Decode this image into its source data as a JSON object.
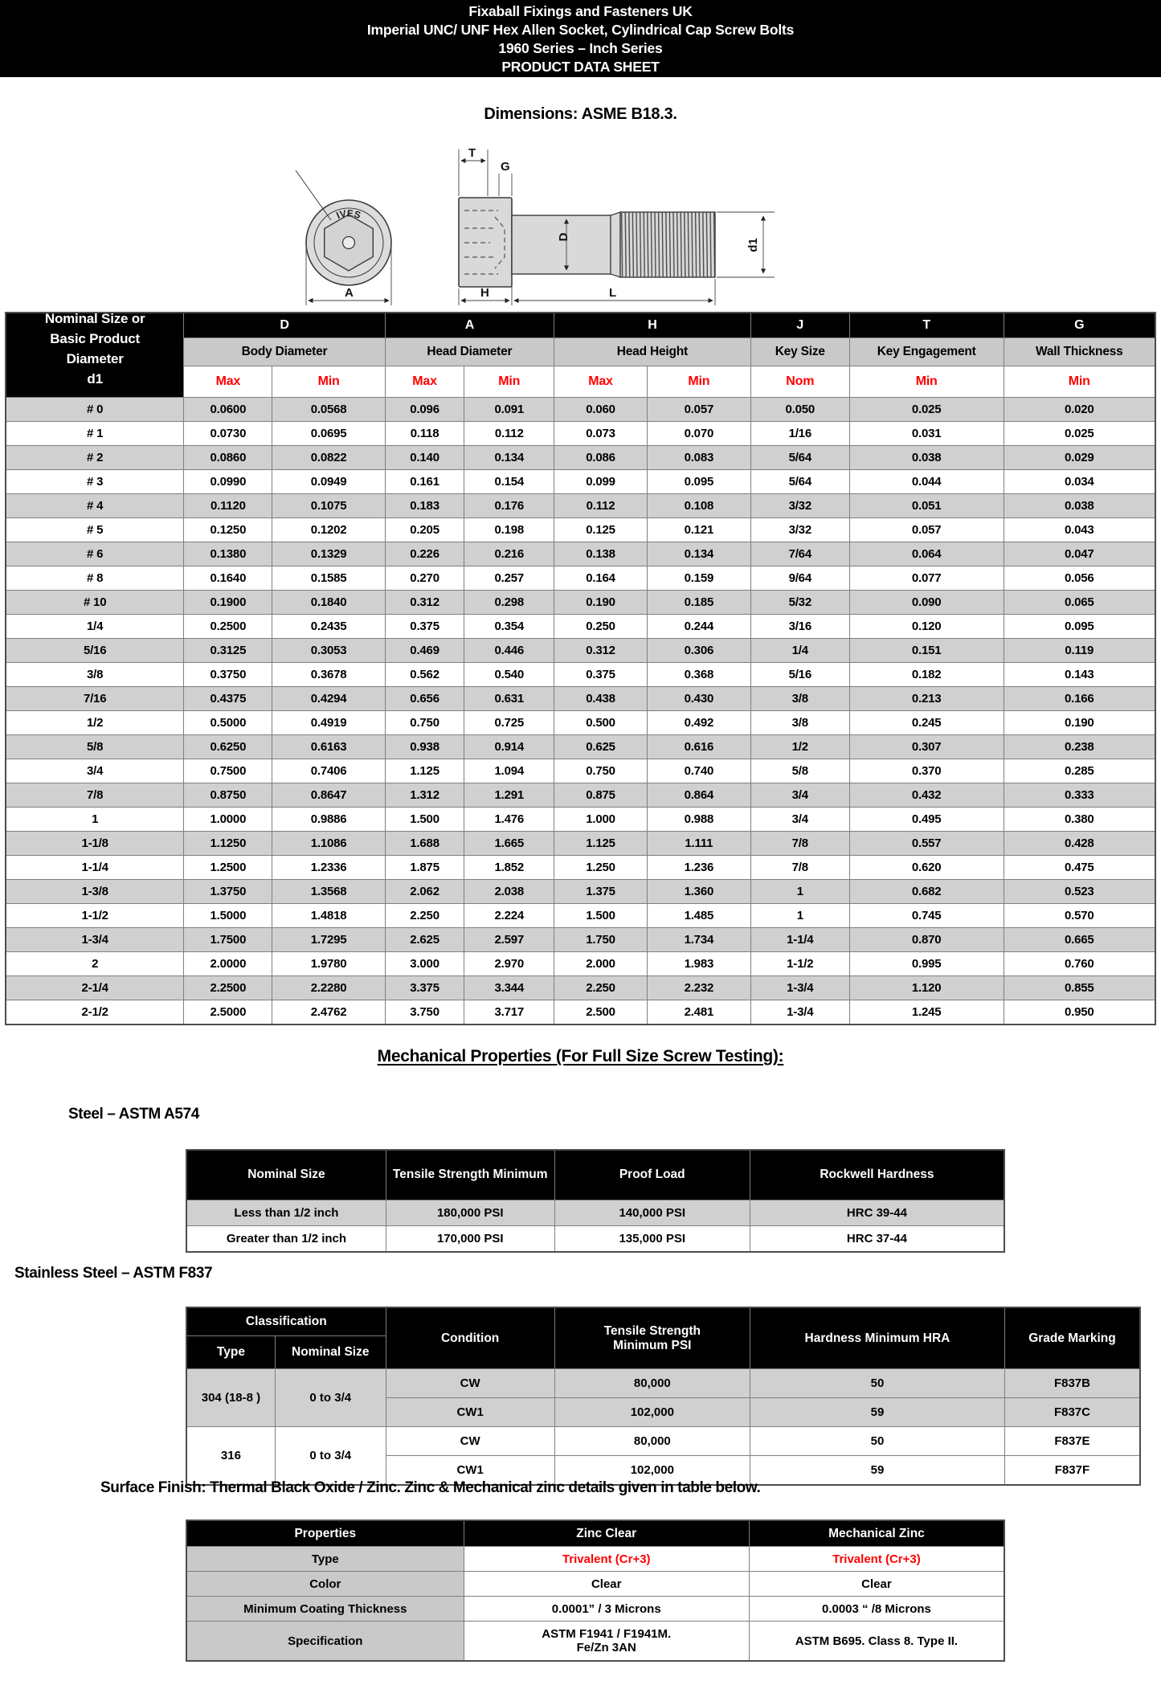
{
  "header": {
    "line1": "Fixaball Fixings and Fasteners UK",
    "line2": "Imperial UNC/ UNF Hex Allen Socket, Cylindrical Cap Screw Bolts",
    "line3": "1960 Series – Inch Series",
    "line4": "PRODUCT DATA SHEET"
  },
  "dimensions_note": "Dimensions: ASME B18.3.",
  "drawing": {
    "head_marking": "IVES",
    "labels": {
      "key_engagement": "T",
      "wall": "G",
      "body": "D",
      "thread": "d1",
      "head_dia": "A",
      "head_height": "H",
      "length": "L"
    }
  },
  "main_table": {
    "corner_header_lines": [
      "Nominal Size or",
      "Basic Product",
      "Diameter",
      "d1"
    ],
    "groups": [
      {
        "letter": "D",
        "name": "Body Diameter",
        "cols": [
          "Max",
          "Min"
        ]
      },
      {
        "letter": "A",
        "name": "Head Diameter",
        "cols": [
          "Max",
          "Min"
        ]
      },
      {
        "letter": "H",
        "name": "Head Height",
        "cols": [
          "Max",
          "Min"
        ]
      },
      {
        "letter": "J",
        "name": "Key Size",
        "cols": [
          "Nom"
        ]
      },
      {
        "letter": "T",
        "name": "Key Engagement",
        "cols": [
          "Min"
        ]
      },
      {
        "letter": "G",
        "name": "Wall Thickness",
        "cols": [
          "Min"
        ]
      }
    ],
    "rows": [
      [
        "# 0",
        "0.0600",
        "0.0568",
        "0.096",
        "0.091",
        "0.060",
        "0.057",
        "0.050",
        "0.025",
        "0.020"
      ],
      [
        "# 1",
        "0.0730",
        "0.0695",
        "0.118",
        "0.112",
        "0.073",
        "0.070",
        "1/16",
        "0.031",
        "0.025"
      ],
      [
        "# 2",
        "0.0860",
        "0.0822",
        "0.140",
        "0.134",
        "0.086",
        "0.083",
        "5/64",
        "0.038",
        "0.029"
      ],
      [
        "# 3",
        "0.0990",
        "0.0949",
        "0.161",
        "0.154",
        "0.099",
        "0.095",
        "5/64",
        "0.044",
        "0.034"
      ],
      [
        "# 4",
        "0.1120",
        "0.1075",
        "0.183",
        "0.176",
        "0.112",
        "0.108",
        "3/32",
        "0.051",
        "0.038"
      ],
      [
        "# 5",
        "0.1250",
        "0.1202",
        "0.205",
        "0.198",
        "0.125",
        "0.121",
        "3/32",
        "0.057",
        "0.043"
      ],
      [
        "# 6",
        "0.1380",
        "0.1329",
        "0.226",
        "0.216",
        "0.138",
        "0.134",
        "7/64",
        "0.064",
        "0.047"
      ],
      [
        "# 8",
        "0.1640",
        "0.1585",
        "0.270",
        "0.257",
        "0.164",
        "0.159",
        "9/64",
        "0.077",
        "0.056"
      ],
      [
        "# 10",
        "0.1900",
        "0.1840",
        "0.312",
        "0.298",
        "0.190",
        "0.185",
        "5/32",
        "0.090",
        "0.065"
      ],
      [
        "1/4",
        "0.2500",
        "0.2435",
        "0.375",
        "0.354",
        "0.250",
        "0.244",
        "3/16",
        "0.120",
        "0.095"
      ],
      [
        "5/16",
        "0.3125",
        "0.3053",
        "0.469",
        "0.446",
        "0.312",
        "0.306",
        "1/4",
        "0.151",
        "0.119"
      ],
      [
        "3/8",
        "0.3750",
        "0.3678",
        "0.562",
        "0.540",
        "0.375",
        "0.368",
        "5/16",
        "0.182",
        "0.143"
      ],
      [
        "7/16",
        "0.4375",
        "0.4294",
        "0.656",
        "0.631",
        "0.438",
        "0.430",
        "3/8",
        "0.213",
        "0.166"
      ],
      [
        "1/2",
        "0.5000",
        "0.4919",
        "0.750",
        "0.725",
        "0.500",
        "0.492",
        "3/8",
        "0.245",
        "0.190"
      ],
      [
        "5/8",
        "0.6250",
        "0.6163",
        "0.938",
        "0.914",
        "0.625",
        "0.616",
        "1/2",
        "0.307",
        "0.238"
      ],
      [
        "3/4",
        "0.7500",
        "0.7406",
        "1.125",
        "1.094",
        "0.750",
        "0.740",
        "5/8",
        "0.370",
        "0.285"
      ],
      [
        "7/8",
        "0.8750",
        "0.8647",
        "1.312",
        "1.291",
        "0.875",
        "0.864",
        "3/4",
        "0.432",
        "0.333"
      ],
      [
        "1",
        "1.0000",
        "0.9886",
        "1.500",
        "1.476",
        "1.000",
        "0.988",
        "3/4",
        "0.495",
        "0.380"
      ],
      [
        "1-1/8",
        "1.1250",
        "1.1086",
        "1.688",
        "1.665",
        "1.125",
        "1.111",
        "7/8",
        "0.557",
        "0.428"
      ],
      [
        "1-1/4",
        "1.2500",
        "1.2336",
        "1.875",
        "1.852",
        "1.250",
        "1.236",
        "7/8",
        "0.620",
        "0.475"
      ],
      [
        "1-3/8",
        "1.3750",
        "1.3568",
        "2.062",
        "2.038",
        "1.375",
        "1.360",
        "1",
        "0.682",
        "0.523"
      ],
      [
        "1-1/2",
        "1.5000",
        "1.4818",
        "2.250",
        "2.224",
        "1.500",
        "1.485",
        "1",
        "0.745",
        "0.570"
      ],
      [
        "1-3/4",
        "1.7500",
        "1.7295",
        "2.625",
        "2.597",
        "1.750",
        "1.734",
        "1-1/4",
        "0.870",
        "0.665"
      ],
      [
        "2",
        "2.0000",
        "1.9780",
        "3.000",
        "2.970",
        "2.000",
        "1.983",
        "1-1/2",
        "0.995",
        "0.760"
      ],
      [
        "2-1/4",
        "2.2500",
        "2.2280",
        "3.375",
        "3.344",
        "2.250",
        "2.232",
        "1-3/4",
        "1.120",
        "0.855"
      ],
      [
        "2-1/2",
        "2.5000",
        "2.4762",
        "3.750",
        "3.717",
        "2.500",
        "2.481",
        "1-3/4",
        "1.245",
        "0.950"
      ]
    ]
  },
  "mechanical": {
    "heading": "Mechanical Properties (For Full Size Screw Testing):",
    "steel_label": "Steel – ASTM A574",
    "steel_table": {
      "headers": [
        "Nominal Size",
        "Tensile Strength Minimum",
        "Proof Load",
        "Rockwell Hardness"
      ],
      "rows": [
        [
          "Less than 1/2 inch",
          "180,000 PSI",
          "140,000 PSI",
          "HRC 39-44"
        ],
        [
          "Greater than 1/2 inch",
          "170,000 PSI",
          "135,000 PSI",
          "HRC 37-44"
        ]
      ]
    },
    "stainless_label": "Stainless Steel – ASTM F837",
    "stainless_table": {
      "classification_header": "Classification",
      "type_header": "Type",
      "nominal_header": "Nominal Size",
      "condition_header": "Condition",
      "tensile_header": "Tensile Strength Minimum PSI",
      "hardness_header": "Hardness Minimum HRA",
      "grade_header": "Grade Marking",
      "groups": [
        {
          "type": "304 (18-8 )",
          "nominal": "0 to 3/4",
          "shade": "g",
          "rows": [
            [
              "CW",
              "80,000",
              "50",
              "F837B"
            ],
            [
              "CW1",
              "102,000",
              "59",
              "F837C"
            ]
          ]
        },
        {
          "type": "316",
          "nominal": "0 to 3/4",
          "shade": "w",
          "rows": [
            [
              "CW",
              "80,000",
              "50",
              "F837E"
            ],
            [
              "CW1",
              "102,000",
              "59",
              "F837F"
            ]
          ]
        }
      ]
    },
    "surface_label": "Surface Finish: Thermal Black Oxide / Zinc. Zinc & Mechanical zinc details given in table below.",
    "surface_table": {
      "headers": [
        "Properties",
        "Zinc Clear",
        "Mechanical Zinc"
      ],
      "rows": [
        {
          "label": "Type",
          "values": [
            "Trivalent (Cr+3)",
            "Trivalent (Cr+3)"
          ],
          "red": true
        },
        {
          "label": "Color",
          "values": [
            "Clear",
            "Clear"
          ],
          "red": false
        },
        {
          "label": "Minimum Coating Thickness",
          "values": [
            "0.0001” / 3 Microns",
            "0.0003 “ /8 Microns"
          ],
          "red": false
        },
        {
          "label": "Specification",
          "values": [
            "ASTM F1941 / F1941M.\nFe/Zn 3AN",
            "ASTM B695. Class 8. Type II."
          ],
          "red": false
        }
      ]
    }
  }
}
